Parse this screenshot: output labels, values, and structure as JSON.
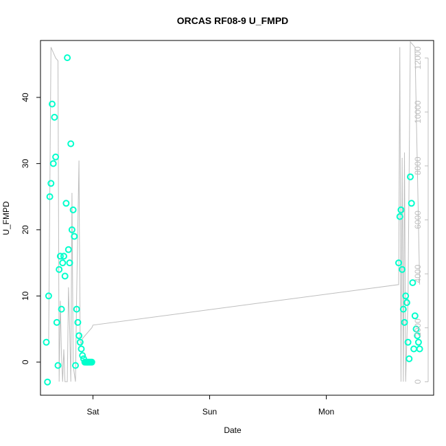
{
  "chart_data": {
    "type": "line",
    "title": "ORCAS RF08-9 U_FMPD",
    "xlabel": "Date",
    "ylabel": "U_FMPD",
    "x_ticks": [
      "Sat",
      "Sun",
      "Mon"
    ],
    "x_tick_days": [
      1,
      2,
      3
    ],
    "xlim_days": [
      0.55,
      3.92
    ],
    "y_ticks": [
      0,
      10,
      20,
      30,
      40
    ],
    "ylim": [
      -5,
      48.6
    ],
    "y2_ticks": [
      0,
      2000,
      4000,
      6000,
      8000,
      10000,
      12000
    ],
    "y2lim": [
      -500,
      12650
    ],
    "grid": false,
    "legend": "none",
    "colors": {
      "primary_series": "#00FFCC",
      "secondary_series": "#BDBDBD",
      "axis": "#000000",
      "secondary_axis": "#BDBDBD"
    },
    "series": [
      {
        "axis": "left",
        "style": "points",
        "x": [
          0.6,
          0.61,
          0.62,
          0.63,
          0.64,
          0.65,
          0.66,
          0.67,
          0.68,
          0.69,
          0.7,
          0.71,
          0.72,
          0.73,
          0.74,
          0.75,
          0.76,
          0.77,
          0.78,
          0.79,
          0.8,
          0.81,
          0.82,
          0.83,
          0.84,
          0.85,
          0.86,
          0.87,
          0.88,
          0.89,
          0.9,
          0.91,
          0.92,
          0.93,
          0.94,
          0.95,
          0.96,
          0.97,
          0.98,
          0.99,
          3.62,
          3.63,
          3.64,
          3.65,
          3.66,
          3.67,
          3.68,
          3.69,
          3.7,
          3.71,
          3.72,
          3.73,
          3.74,
          3.75,
          3.76,
          3.77,
          3.78,
          3.79,
          3.8
        ],
        "values": [
          3.0,
          -3.0,
          10.0,
          25.0,
          27.0,
          39.0,
          30.0,
          37.0,
          31.0,
          6.0,
          -0.5,
          14.0,
          16.0,
          8.0,
          15.0,
          16.0,
          13.0,
          24.0,
          46.0,
          17.0,
          15.0,
          33.0,
          20.0,
          23.0,
          19.0,
          -0.5,
          8.0,
          6.0,
          4.0,
          3.0,
          2.0,
          1.0,
          0.5,
          0.0,
          0.0,
          0.0,
          0.0,
          0.0,
          0.0,
          0.0,
          15.0,
          22.0,
          23.0,
          14.0,
          8.0,
          6.0,
          10.0,
          9.0,
          3.0,
          0.5,
          28.0,
          24.0,
          12.0,
          2.0,
          7.0,
          5.0,
          4.0,
          3.0,
          2.0
        ]
      },
      {
        "axis": "right",
        "style": "line",
        "x": [
          0.62,
          0.64,
          0.65,
          0.66,
          0.67,
          0.68,
          0.7,
          0.71,
          0.72,
          0.73,
          0.74,
          0.75,
          0.76,
          0.77,
          0.78,
          0.79,
          0.8,
          0.81,
          0.82,
          0.83,
          0.84,
          0.85,
          0.86,
          0.88,
          0.89,
          0.9,
          0.91,
          0.93,
          0.95,
          0.97,
          0.99,
          1.0,
          3.62,
          3.63,
          3.64,
          3.65,
          3.66,
          3.67,
          3.68,
          3.7,
          3.72,
          3.74,
          3.76,
          3.78,
          3.8
        ],
        "values": [
          1500,
          12400,
          12300,
          12200,
          12100,
          12000,
          11900,
          0,
          3000,
          1000,
          0,
          1200,
          0,
          0,
          0,
          3500,
          2000,
          0,
          7000,
          600,
          300,
          0,
          3200,
          8200,
          1500,
          1400,
          1600,
          1700,
          1800,
          1900,
          2000,
          2100,
          3600,
          12400,
          0,
          8300,
          0,
          8500,
          0,
          3000,
          12600,
          12500,
          12400,
          8000,
          3600
        ]
      }
    ]
  }
}
